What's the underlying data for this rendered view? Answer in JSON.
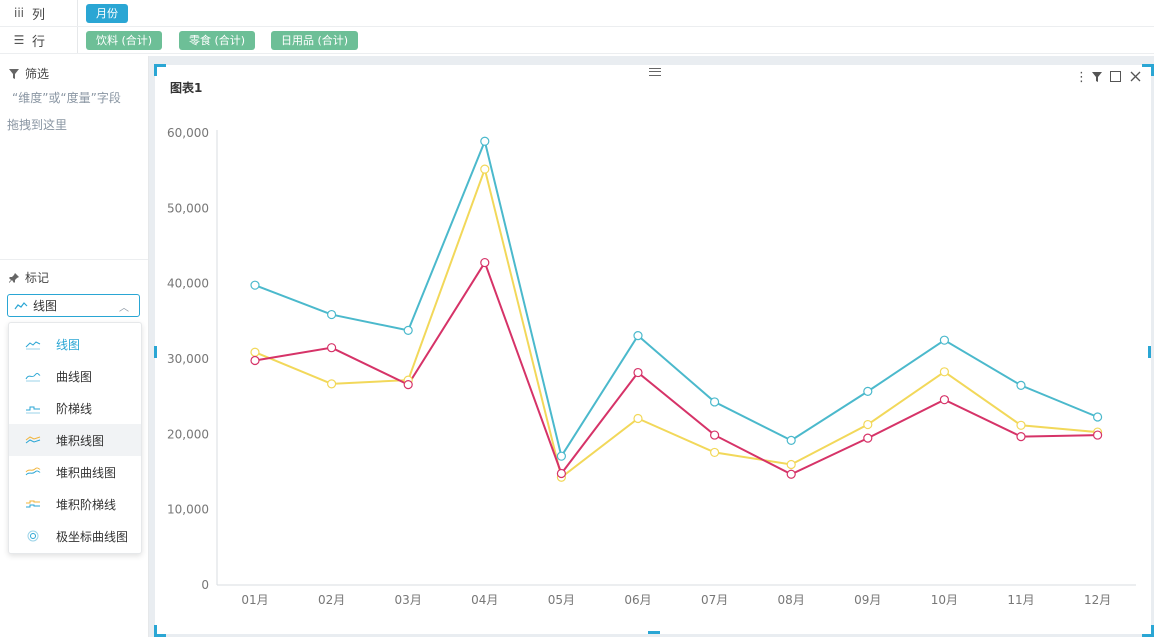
{
  "shelves": {
    "columns": {
      "label": "列",
      "icon": "columns-icon",
      "pills": [
        "月份"
      ]
    },
    "rows": {
      "label": "行",
      "icon": "rows-icon",
      "pills": [
        "饮料 (合计)",
        "零食 (合计)",
        "日用品 (合计)"
      ]
    }
  },
  "filter": {
    "title": "筛选",
    "hint1": "“维度”或“度量”字段",
    "hint2": "拖拽到这里"
  },
  "marks": {
    "title": "标记",
    "selected": "线图",
    "options": [
      "线图",
      "曲线图",
      "阶梯线",
      "堆积线图",
      "堆积曲线图",
      "堆积阶梯线",
      "极坐标曲线图"
    ]
  },
  "chart_title": "图表1",
  "colors": {
    "accent": "#2aa6d4",
    "pill_green": "#6dbf97",
    "series_teal": "#4bb9cc",
    "series_yellow": "#f2d85a",
    "series_red": "#d63368"
  },
  "chart_data": {
    "type": "line",
    "title": "图表1",
    "categories": [
      "01月",
      "02月",
      "03月",
      "04月",
      "05月",
      "06月",
      "07月",
      "08月",
      "09月",
      "10月",
      "11月",
      "12月"
    ],
    "ylim": [
      0,
      60000
    ],
    "yticks": [
      "0",
      "10,000",
      "20,000",
      "30,000",
      "40,000",
      "50,000",
      "60,000"
    ],
    "grid": false,
    "legend": "none",
    "series": [
      {
        "color": "#4bb9cc",
        "values": [
          39800,
          35900,
          33800,
          58900,
          17100,
          33100,
          24300,
          19200,
          25700,
          32500,
          26500,
          22300
        ]
      },
      {
        "color": "#f2d85a",
        "values": [
          30900,
          26700,
          27200,
          55200,
          14300,
          22100,
          17600,
          16000,
          21300,
          28300,
          21200,
          20300
        ]
      },
      {
        "color": "#d63368",
        "values": [
          29800,
          31500,
          26600,
          42800,
          14800,
          28200,
          19900,
          14700,
          19500,
          24600,
          19700,
          19900
        ]
      }
    ]
  }
}
